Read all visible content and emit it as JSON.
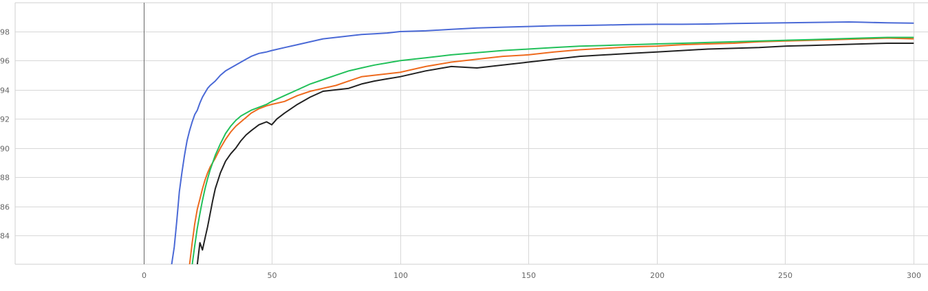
{
  "chart_data": {
    "type": "line",
    "title": "",
    "xlabel": "",
    "ylabel": "",
    "xlim": [
      -50,
      300
    ],
    "ylim": [
      82,
      99.5
    ],
    "x_ticks": [
      0,
      50,
      100,
      150,
      200,
      250,
      300
    ],
    "y_ticks": [
      84,
      86,
      88,
      90,
      92,
      94,
      96,
      98
    ],
    "x_tick_labels": [
      "0",
      "50",
      "100",
      "150",
      "200",
      "250",
      "300"
    ],
    "y_tick_labels": [
      "84",
      "86",
      "88",
      "90",
      "92",
      "94",
      "96",
      "98"
    ],
    "grid": true,
    "legend": "none",
    "series": [
      {
        "color": "#4a69d6",
        "x": [
          11,
          12,
          13,
          14,
          15,
          16,
          17,
          18,
          19,
          20,
          21,
          22,
          23,
          24,
          25,
          26,
          28,
          30,
          32,
          34,
          36,
          38,
          40,
          42,
          45,
          48,
          50,
          55,
          60,
          65,
          70,
          75,
          80,
          85,
          90,
          95,
          100,
          110,
          120,
          130,
          140,
          150,
          160,
          170,
          180,
          190,
          200,
          210,
          220,
          230,
          240,
          250,
          260,
          270,
          275,
          280,
          290,
          300
        ],
        "y": [
          82,
          83.2,
          85,
          87,
          88.3,
          89.5,
          90.5,
          91.2,
          91.8,
          92.3,
          92.6,
          93.1,
          93.5,
          93.8,
          94.1,
          94.3,
          94.6,
          95.0,
          95.3,
          95.5,
          95.7,
          95.9,
          96.1,
          96.3,
          96.5,
          96.6,
          96.7,
          96.9,
          97.1,
          97.3,
          97.5,
          97.6,
          97.7,
          97.8,
          97.85,
          97.9,
          98.0,
          98.05,
          98.15,
          98.25,
          98.3,
          98.35,
          98.4,
          98.42,
          98.45,
          98.48,
          98.5,
          98.5,
          98.52,
          98.55,
          98.58,
          98.6,
          98.62,
          98.65,
          98.66,
          98.64,
          98.6,
          98.58
        ]
      },
      {
        "color": "#ee6a1e",
        "x": [
          18,
          19,
          20,
          21,
          22,
          23,
          24,
          25,
          26,
          28,
          30,
          32,
          34,
          36,
          38,
          40,
          42,
          45,
          48,
          50,
          55,
          60,
          65,
          70,
          75,
          80,
          85,
          90,
          95,
          100,
          110,
          120,
          130,
          140,
          150,
          160,
          170,
          180,
          190,
          200,
          210,
          220,
          230,
          240,
          250,
          260,
          270,
          280,
          290,
          300
        ],
        "y": [
          82,
          83.5,
          84.8,
          85.8,
          86.5,
          87.2,
          87.8,
          88.3,
          88.7,
          89.3,
          90.0,
          90.6,
          91.1,
          91.5,
          91.8,
          92.1,
          92.4,
          92.7,
          92.9,
          93.0,
          93.2,
          93.6,
          93.9,
          94.1,
          94.3,
          94.6,
          94.9,
          95.0,
          95.1,
          95.2,
          95.6,
          95.9,
          96.1,
          96.3,
          96.4,
          96.6,
          96.75,
          96.85,
          96.95,
          97.0,
          97.1,
          97.15,
          97.2,
          97.3,
          97.35,
          97.4,
          97.45,
          97.5,
          97.55,
          97.5
        ]
      },
      {
        "color": "#22c05a",
        "x": [
          19,
          20,
          21,
          22,
          23,
          24,
          25,
          26,
          28,
          30,
          32,
          34,
          36,
          38,
          40,
          42,
          45,
          48,
          50,
          55,
          60,
          65,
          70,
          75,
          80,
          85,
          90,
          95,
          100,
          110,
          120,
          130,
          140,
          150,
          160,
          170,
          180,
          190,
          200,
          210,
          220,
          230,
          240,
          250,
          260,
          270,
          280,
          290,
          300
        ],
        "y": [
          82,
          83.3,
          84.5,
          85.5,
          86.4,
          87.2,
          87.9,
          88.5,
          89.5,
          90.3,
          91.0,
          91.5,
          91.9,
          92.2,
          92.4,
          92.6,
          92.8,
          93.0,
          93.2,
          93.6,
          94.0,
          94.4,
          94.7,
          95.0,
          95.3,
          95.5,
          95.7,
          95.85,
          96.0,
          96.2,
          96.4,
          96.55,
          96.7,
          96.8,
          96.9,
          97.0,
          97.05,
          97.1,
          97.15,
          97.2,
          97.25,
          97.3,
          97.35,
          97.4,
          97.45,
          97.5,
          97.55,
          97.6,
          97.6
        ]
      },
      {
        "color": "#222222",
        "x": [
          21,
          22,
          23,
          24,
          25,
          26,
          27,
          28,
          30,
          32,
          34,
          36,
          38,
          40,
          42,
          45,
          48,
          50,
          52,
          55,
          60,
          65,
          70,
          75,
          80,
          85,
          90,
          95,
          100,
          110,
          120,
          130,
          140,
          150,
          160,
          170,
          180,
          190,
          200,
          210,
          220,
          230,
          240,
          250,
          260,
          270,
          280,
          290,
          300
        ],
        "y": [
          82,
          83.5,
          83.0,
          83.8,
          84.6,
          85.5,
          86.4,
          87.2,
          88.3,
          89.1,
          89.6,
          90.0,
          90.5,
          90.9,
          91.2,
          91.6,
          91.8,
          91.6,
          92.0,
          92.4,
          93.0,
          93.5,
          93.9,
          94.0,
          94.1,
          94.4,
          94.6,
          94.75,
          94.9,
          95.3,
          95.6,
          95.5,
          95.7,
          95.9,
          96.1,
          96.3,
          96.4,
          96.5,
          96.6,
          96.7,
          96.8,
          96.85,
          96.9,
          97.0,
          97.05,
          97.1,
          97.15,
          97.2,
          97.2
        ]
      }
    ]
  }
}
